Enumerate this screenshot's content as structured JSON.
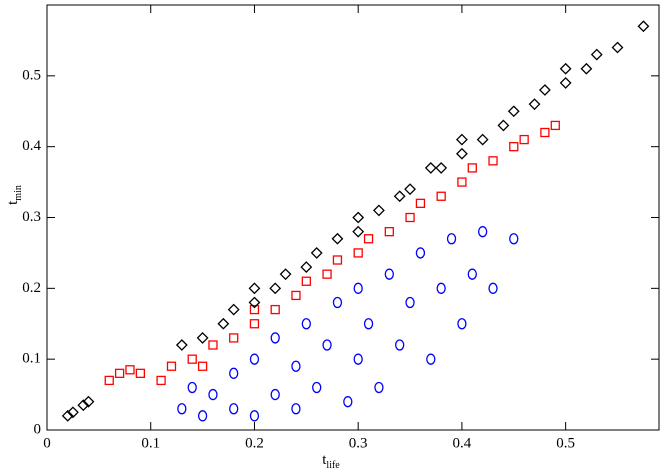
{
  "chart_data": {
    "type": "scatter",
    "xlabel": "t",
    "xlabel_sub": "life",
    "ylabel": "t",
    "ylabel_sub": "min",
    "xlim": [
      0,
      0.59
    ],
    "ylim": [
      0,
      0.6
    ],
    "xticks": [
      0,
      0.1,
      0.2,
      0.3,
      0.4,
      0.5
    ],
    "yticks": [
      0,
      0.1,
      0.2,
      0.3,
      0.4,
      0.5
    ],
    "series": [
      {
        "color": "#000000",
        "marker": "diamond",
        "x": [
          0.02,
          0.025,
          0.035,
          0.04,
          0.13,
          0.15,
          0.17,
          0.18,
          0.2,
          0.2,
          0.22,
          0.23,
          0.25,
          0.26,
          0.28,
          0.3,
          0.3,
          0.32,
          0.34,
          0.35,
          0.37,
          0.38,
          0.4,
          0.4,
          0.42,
          0.44,
          0.45,
          0.47,
          0.48,
          0.5,
          0.5,
          0.52,
          0.53,
          0.55,
          0.575
        ],
        "values": [
          0.02,
          0.025,
          0.035,
          0.04,
          0.12,
          0.13,
          0.15,
          0.17,
          0.18,
          0.2,
          0.2,
          0.22,
          0.23,
          0.25,
          0.27,
          0.28,
          0.3,
          0.31,
          0.33,
          0.34,
          0.37,
          0.37,
          0.39,
          0.41,
          0.41,
          0.43,
          0.45,
          0.46,
          0.48,
          0.49,
          0.51,
          0.51,
          0.53,
          0.54,
          0.57
        ]
      },
      {
        "color": "#ff0000",
        "marker": "square",
        "x": [
          0.06,
          0.07,
          0.08,
          0.09,
          0.11,
          0.12,
          0.14,
          0.15,
          0.16,
          0.18,
          0.2,
          0.2,
          0.22,
          0.24,
          0.25,
          0.27,
          0.28,
          0.3,
          0.31,
          0.33,
          0.35,
          0.36,
          0.38,
          0.4,
          0.41,
          0.43,
          0.45,
          0.46,
          0.48,
          0.49
        ],
        "values": [
          0.07,
          0.08,
          0.085,
          0.08,
          0.07,
          0.09,
          0.1,
          0.09,
          0.12,
          0.13,
          0.15,
          0.17,
          0.17,
          0.19,
          0.21,
          0.22,
          0.24,
          0.25,
          0.27,
          0.28,
          0.3,
          0.32,
          0.33,
          0.35,
          0.37,
          0.38,
          0.4,
          0.41,
          0.42,
          0.43
        ]
      },
      {
        "color": "#0000ff",
        "marker": "circle",
        "x": [
          0.13,
          0.14,
          0.15,
          0.16,
          0.18,
          0.18,
          0.2,
          0.2,
          0.22,
          0.22,
          0.24,
          0.24,
          0.25,
          0.26,
          0.27,
          0.28,
          0.29,
          0.3,
          0.3,
          0.31,
          0.32,
          0.33,
          0.34,
          0.35,
          0.36,
          0.37,
          0.38,
          0.39,
          0.4,
          0.41,
          0.42,
          0.43,
          0.45
        ],
        "values": [
          0.03,
          0.06,
          0.02,
          0.05,
          0.03,
          0.08,
          0.02,
          0.1,
          0.05,
          0.13,
          0.03,
          0.09,
          0.15,
          0.06,
          0.12,
          0.18,
          0.04,
          0.1,
          0.2,
          0.15,
          0.06,
          0.22,
          0.12,
          0.18,
          0.25,
          0.1,
          0.2,
          0.27,
          0.15,
          0.22,
          0.28,
          0.2,
          0.27
        ]
      }
    ]
  }
}
